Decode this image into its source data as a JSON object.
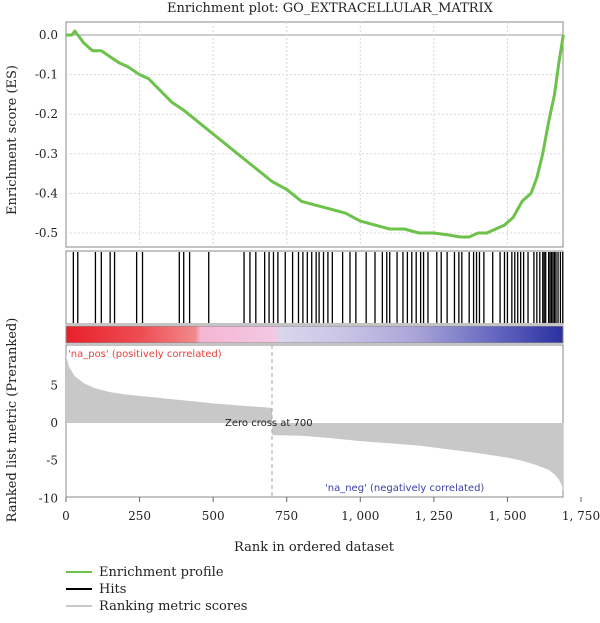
{
  "chart_data": {
    "type": "line",
    "title": "Enrichment plot: GO_EXTRACELLULAR_MATRIX",
    "xlabel": "Rank in ordered dataset",
    "xlim": [
      0,
      1750
    ],
    "x_ticks": [
      0,
      250,
      500,
      750,
      1000,
      1250,
      1500,
      1750
    ],
    "x_tick_labels": [
      "0",
      "250",
      "500",
      "750",
      "1, 000",
      "1, 250",
      "1, 500",
      "1, 750"
    ],
    "es_panel": {
      "ylabel": "Enrichment score (ES)",
      "ylim": [
        -0.55,
        0.03
      ],
      "y_ticks": [
        0.0,
        -0.1,
        -0.2,
        -0.3,
        -0.4,
        -0.5
      ],
      "y_tick_labels": [
        "0.0",
        "-0.1",
        "-0.2",
        "-0.3",
        "-0.4",
        "-0.5"
      ],
      "grid": true,
      "series": [
        {
          "name": "Enrichment profile",
          "color": "#6cc24a",
          "x": [
            0,
            20,
            30,
            60,
            90,
            120,
            150,
            180,
            210,
            250,
            280,
            320,
            360,
            400,
            450,
            500,
            550,
            600,
            650,
            700,
            750,
            800,
            850,
            900,
            950,
            1000,
            1050,
            1100,
            1150,
            1200,
            1250,
            1300,
            1340,
            1370,
            1400,
            1430,
            1460,
            1490,
            1520,
            1550,
            1580,
            1600,
            1620,
            1640,
            1660,
            1675,
            1690
          ],
          "y": [
            0.0,
            0.0,
            0.01,
            -0.02,
            -0.04,
            -0.04,
            -0.055,
            -0.07,
            -0.08,
            -0.1,
            -0.11,
            -0.14,
            -0.17,
            -0.19,
            -0.22,
            -0.25,
            -0.28,
            -0.31,
            -0.34,
            -0.37,
            -0.39,
            -0.42,
            -0.43,
            -0.44,
            -0.45,
            -0.47,
            -0.48,
            -0.49,
            -0.49,
            -0.5,
            -0.5,
            -0.505,
            -0.51,
            -0.51,
            -0.5,
            -0.5,
            -0.49,
            -0.48,
            -0.46,
            -0.42,
            -0.4,
            -0.36,
            -0.3,
            -0.22,
            -0.15,
            -0.07,
            0.0
          ]
        }
      ]
    },
    "hits_panel": {
      "name": "Hits",
      "color": "#000000",
      "x": [
        25,
        40,
        100,
        120,
        150,
        165,
        240,
        260,
        385,
        400,
        420,
        485,
        605,
        625,
        645,
        675,
        690,
        705,
        720,
        745,
        770,
        790,
        805,
        820,
        835,
        850,
        860,
        875,
        890,
        905,
        940,
        965,
        985,
        1020,
        1050,
        1075,
        1090,
        1100,
        1125,
        1145,
        1160,
        1175,
        1190,
        1205,
        1215,
        1230,
        1260,
        1275,
        1295,
        1320,
        1335,
        1345,
        1370,
        1385,
        1395,
        1405,
        1420,
        1450,
        1475,
        1490,
        1500,
        1515,
        1525,
        1535,
        1545,
        1555,
        1570,
        1590,
        1600,
        1610,
        1620,
        1625,
        1630,
        1640,
        1645,
        1650,
        1655,
        1660,
        1665,
        1672,
        1680,
        1688
      ]
    },
    "ranking_panel": {
      "name": "Ranking metric scores",
      "color": "#c8c8c8",
      "ylabel": "Ranked list metric (Preranked)",
      "ylim": [
        -10,
        10
      ],
      "y_ticks": [
        5,
        0,
        -5,
        -10
      ],
      "y_tick_labels": [
        "5",
        "0",
        "-5",
        "-10"
      ],
      "positive_label": "'na_pos' (positively correlated)",
      "negative_label": "'na_neg' (negatively correlated)",
      "zero_cross_label": "Zero cross at 700",
      "zero_cross_x": 700,
      "x": [
        0,
        10,
        30,
        60,
        100,
        150,
        200,
        300,
        400,
        500,
        600,
        700,
        701,
        800,
        900,
        1000,
        1100,
        1200,
        1300,
        1400,
        1500,
        1550,
        1600,
        1640,
        1660,
        1675,
        1685,
        1690
      ],
      "y": [
        9,
        7.5,
        6.2,
        5.3,
        4.6,
        4.1,
        3.8,
        3.4,
        3.0,
        2.6,
        2.3,
        2.0,
        -1.6,
        -1.7,
        -2.0,
        -2.4,
        -2.7,
        -3.0,
        -3.5,
        -4.0,
        -4.6,
        -5.0,
        -5.6,
        -6.2,
        -6.8,
        -7.5,
        -8.3,
        -9.2
      ]
    },
    "legend": {
      "placement": "bottom-left",
      "entries": [
        {
          "label": "Enrichment profile",
          "color": "#6cc24a"
        },
        {
          "label": "Hits",
          "color": "#000000"
        },
        {
          "label": "Ranking metric scores",
          "color": "#c8c8c8"
        }
      ]
    }
  }
}
